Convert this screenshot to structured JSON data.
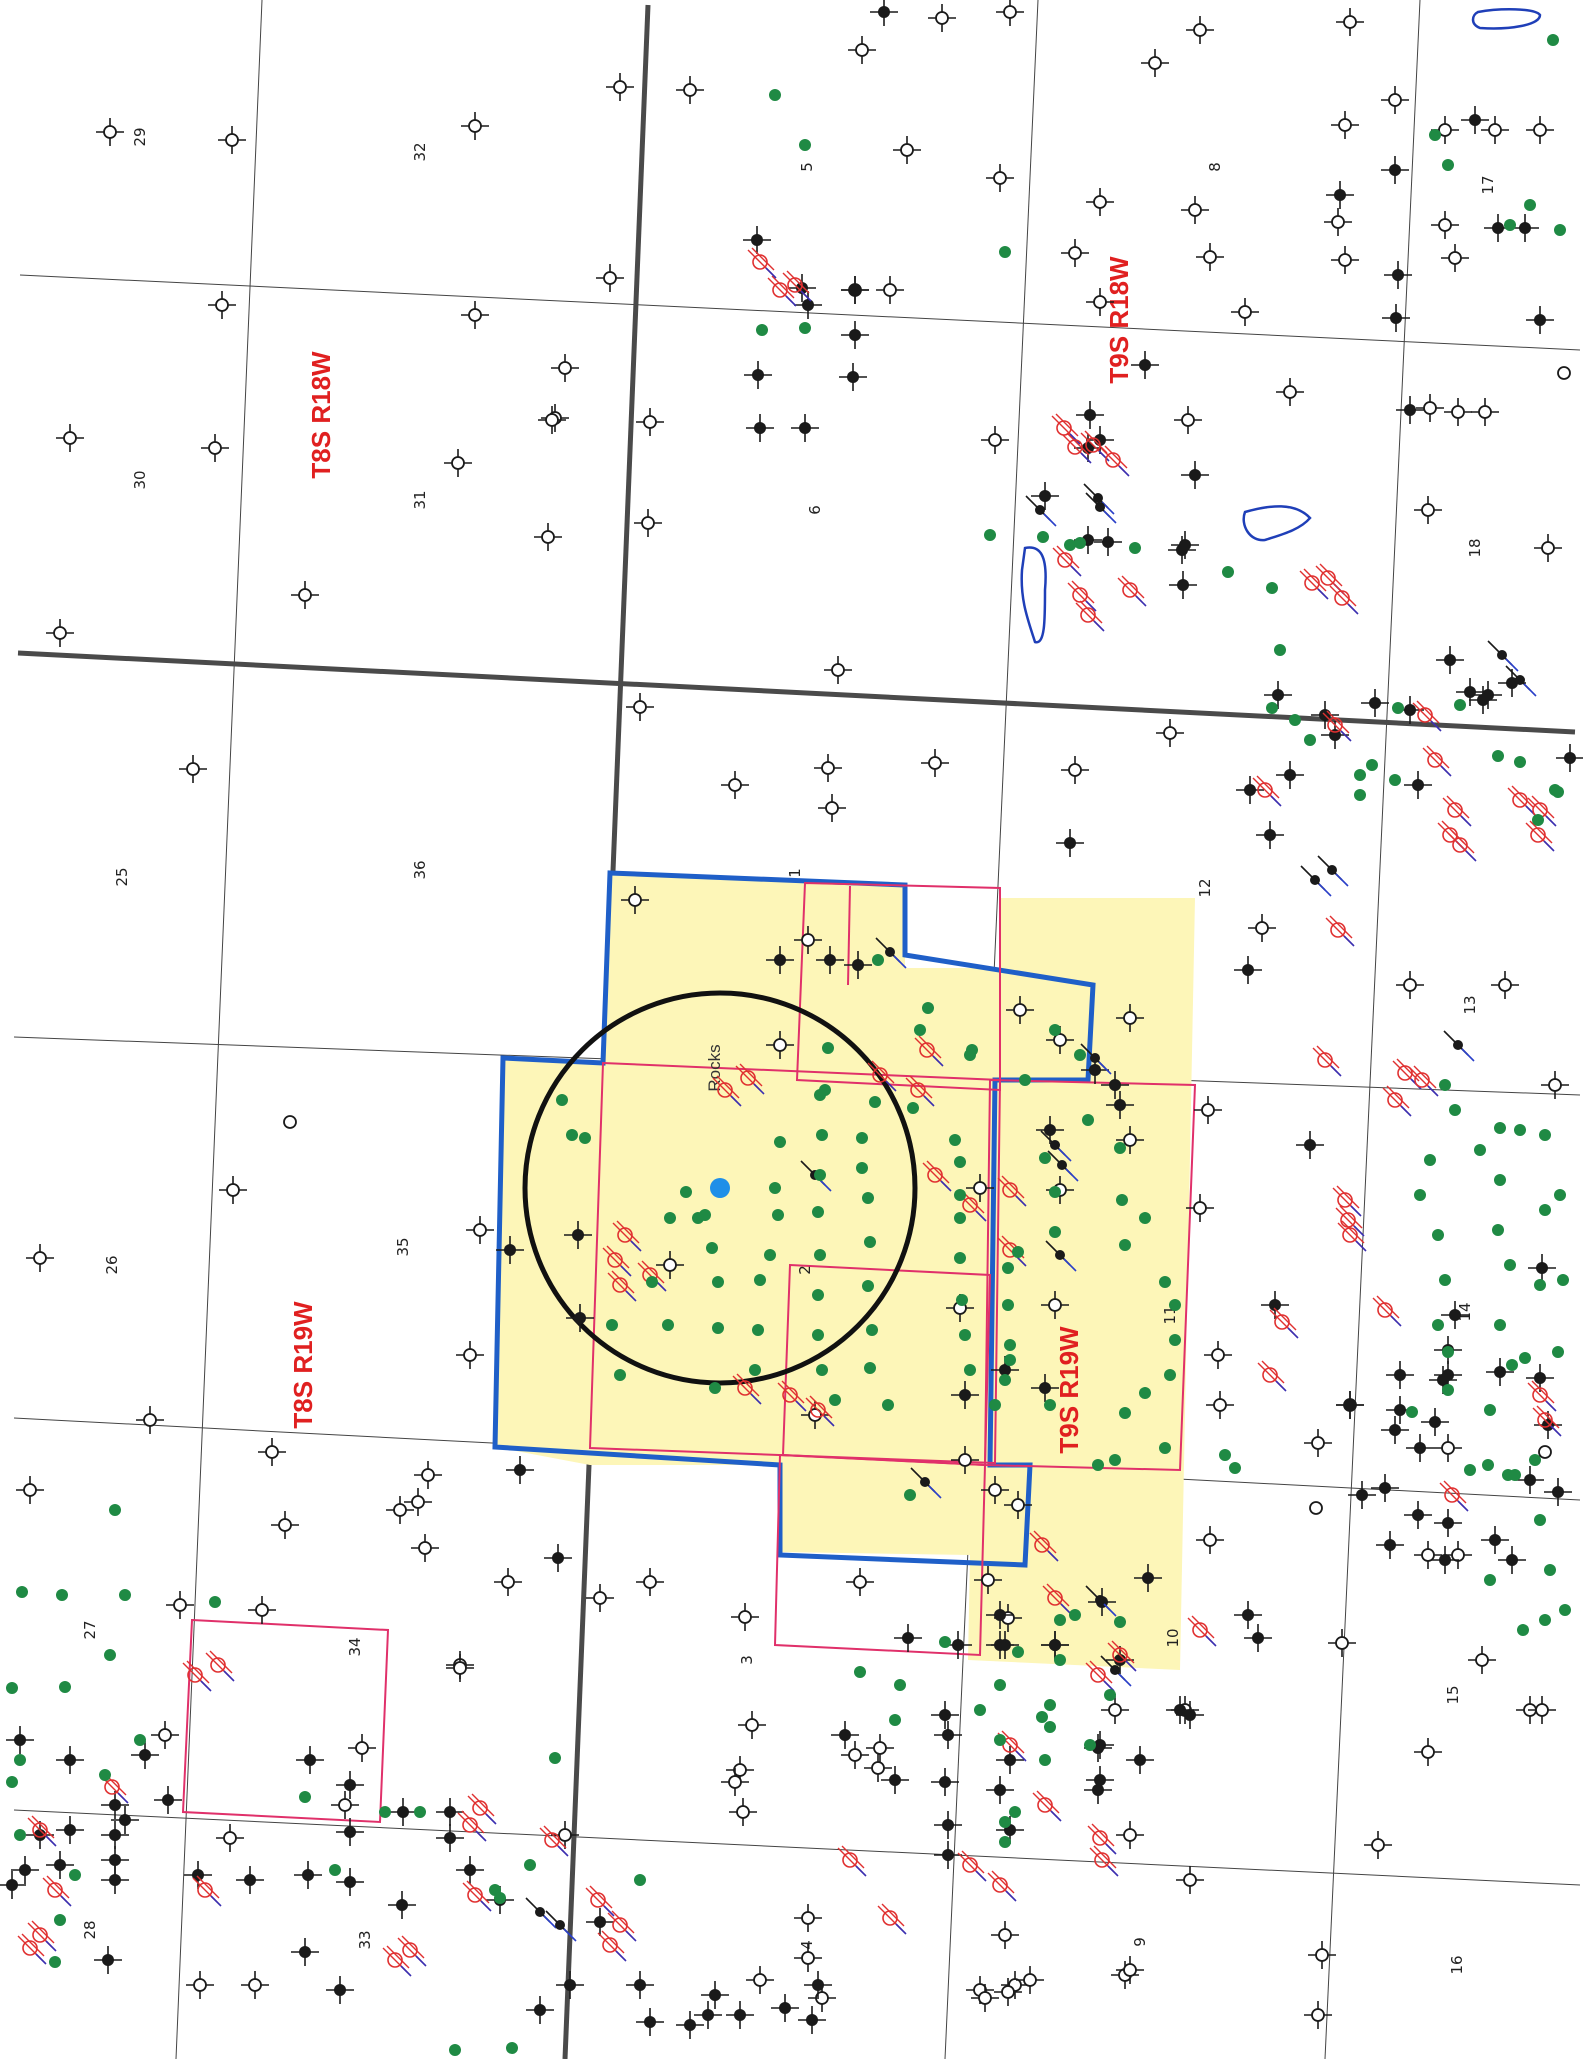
{
  "colors": {
    "township_label": "#e02020",
    "lease_fill": "#fdf6b8",
    "lease_outline": "#1f5fc8",
    "tract_outline": "#e0306a",
    "well_symbol": "#1a1a1a",
    "producing_well": "#1f8a44",
    "plugged_well": "#e03030",
    "pond_outline": "#1f3fb8",
    "center_point": "#1f8fe8",
    "radius_circle": "#111111"
  },
  "map": {
    "township_labels": [
      {
        "id": "t8s-r18w",
        "text": "T8S R18W"
      },
      {
        "id": "t9s-r18w",
        "text": "T9S R18W"
      },
      {
        "id": "t8s-r19w",
        "text": "T8S R19W"
      },
      {
        "id": "t9s-r19w",
        "text": "T9S R19W"
      }
    ],
    "place_label": "Rocks",
    "section_numbers": [
      "29",
      "32",
      "5",
      "8",
      "17",
      "30",
      "31",
      "6",
      "18",
      "25",
      "36",
      "1",
      "12",
      "13",
      "26",
      "35",
      "2",
      "11",
      "14",
      "27",
      "34",
      "3",
      "10",
      "15",
      "28",
      "33",
      "4",
      "9",
      "16"
    ],
    "legend_symbols": {
      "dry_hole": "dry-hole-well-icon",
      "oil_well": "oil-well-icon",
      "producing_location": "producing-well-dot-icon",
      "plugged_well": "plugged-well-icon"
    }
  }
}
